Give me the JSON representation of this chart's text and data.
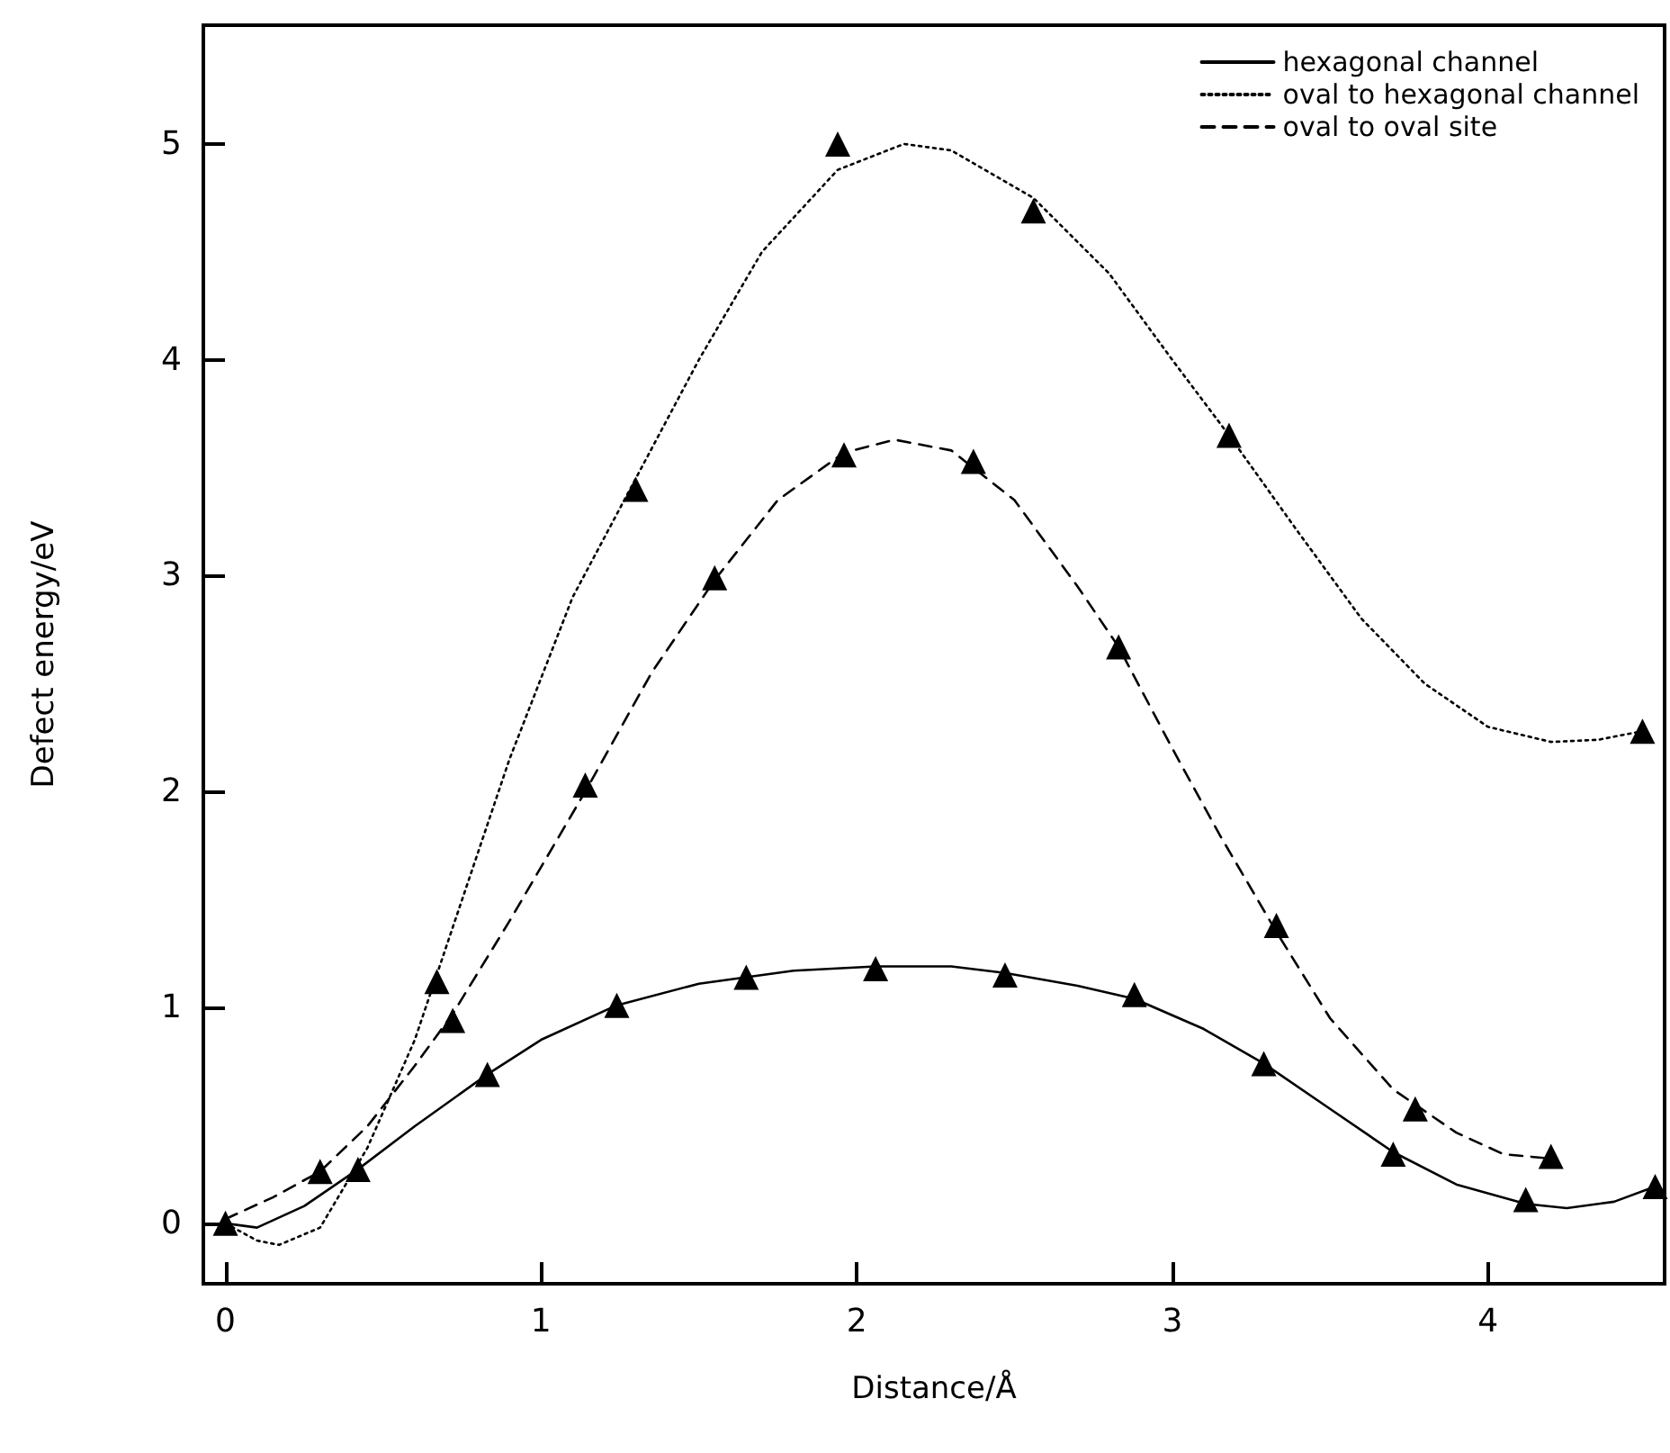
{
  "chart_data": {
    "type": "line",
    "xlabel": "Distance/Å",
    "ylabel": "Defect energy/eV",
    "xlim": [
      -0.07,
      4.56
    ],
    "ylim": [
      -0.28,
      5.55
    ],
    "xticks": [
      0,
      1,
      2,
      3,
      4
    ],
    "yticks": [
      0,
      1,
      2,
      3,
      4,
      5
    ],
    "grid": false,
    "legend": "top right",
    "series": [
      {
        "name": "hexagonal channel",
        "color": "#000000",
        "line_style": "solid",
        "marker": "none",
        "x": [
          0,
          0.1,
          0.25,
          0.42,
          0.6,
          0.83,
          1.0,
          1.24,
          1.5,
          1.8,
          2.06,
          2.3,
          2.47,
          2.7,
          2.88,
          3.1,
          3.29,
          3.5,
          3.7,
          3.9,
          4.12,
          4.25,
          4.4,
          4.53
        ],
        "values": [
          0,
          -0.02,
          0.08,
          0.25,
          0.45,
          0.69,
          0.85,
          1.01,
          1.11,
          1.17,
          1.19,
          1.19,
          1.16,
          1.1,
          1.04,
          0.9,
          0.74,
          0.53,
          0.33,
          0.18,
          0.09,
          0.07,
          0.1,
          0.17
        ]
      },
      {
        "name": "oval to hexagonal channel",
        "color": "#000000",
        "line_style": "dotted",
        "marker": "none",
        "x": [
          0,
          0.1,
          0.17,
          0.3,
          0.45,
          0.6,
          0.75,
          0.9,
          1.1,
          1.3,
          1.5,
          1.7,
          1.94,
          2.15,
          2.3,
          2.56,
          2.8,
          3.0,
          3.18,
          3.4,
          3.6,
          3.8,
          4.0,
          4.2,
          4.35,
          4.49
        ],
        "values": [
          0,
          -0.08,
          -0.1,
          -0.02,
          0.35,
          0.85,
          1.5,
          2.15,
          2.9,
          3.45,
          4.0,
          4.5,
          4.88,
          5.0,
          4.97,
          4.75,
          4.4,
          4.0,
          3.65,
          3.2,
          2.8,
          2.5,
          2.3,
          2.23,
          2.24,
          2.28
        ]
      },
      {
        "name": "oval to oval site",
        "color": "#000000",
        "line_style": "dashed",
        "marker": "none",
        "x": [
          0,
          0.15,
          0.3,
          0.45,
          0.6,
          0.72,
          0.9,
          1.14,
          1.35,
          1.55,
          1.75,
          1.96,
          2.12,
          2.3,
          2.5,
          2.7,
          2.83,
          3.0,
          3.15,
          3.33,
          3.5,
          3.7,
          3.9,
          4.05,
          4.2
        ],
        "values": [
          0.02,
          0.12,
          0.24,
          0.45,
          0.73,
          0.97,
          1.4,
          2.0,
          2.55,
          2.98,
          3.35,
          3.57,
          3.63,
          3.58,
          3.35,
          2.95,
          2.67,
          2.2,
          1.8,
          1.35,
          0.95,
          0.62,
          0.42,
          0.32,
          0.3
        ]
      },
      {
        "type": "scatter",
        "color": "#000000",
        "marker": "triangle",
        "x": [
          0,
          0.42,
          0.83,
          1.24,
          1.65,
          2.06,
          2.47,
          2.88,
          3.29,
          3.7,
          4.12,
          4.53
        ],
        "values": [
          0,
          0.25,
          0.69,
          1.01,
          1.14,
          1.18,
          1.15,
          1.06,
          0.74,
          0.32,
          0.11,
          0.17
        ]
      },
      {
        "type": "scatter",
        "color": "#000000",
        "marker": "triangle",
        "x": [
          0.67,
          1.3,
          1.94,
          2.56,
          3.18,
          4.49
        ],
        "values": [
          1.12,
          3.4,
          5.0,
          4.69,
          3.65,
          2.28
        ]
      },
      {
        "type": "scatter",
        "color": "#000000",
        "marker": "triangle",
        "x": [
          0.3,
          0.72,
          1.14,
          1.55,
          1.96,
          2.37,
          2.83,
          3.33,
          3.77,
          4.2
        ],
        "values": [
          0.24,
          0.94,
          2.03,
          2.99,
          3.56,
          3.53,
          2.67,
          1.38,
          0.53,
          0.31
        ]
      }
    ]
  }
}
